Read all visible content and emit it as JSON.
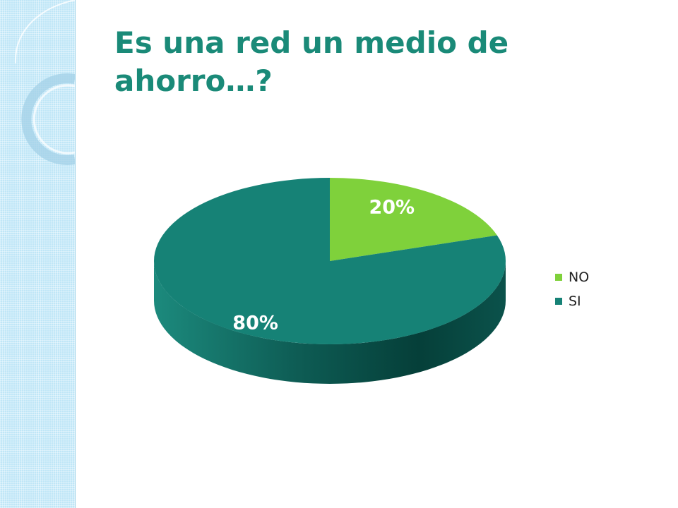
{
  "slide": {
    "title_lines": [
      "Es una red un medio de",
      "ahorro…?"
    ]
  },
  "colors": {
    "title": "#1a8a78",
    "no": "#7fd13b",
    "si": "#168276",
    "side_band": "#bfe6f7"
  },
  "chart_data": {
    "type": "pie",
    "style": "3d",
    "title": "",
    "slices": [
      {
        "label": "NO",
        "value": 20,
        "value_label": "20%",
        "color": "#7fd13b"
      },
      {
        "label": "SI",
        "value": 80,
        "value_label": "80%",
        "color": "#168276"
      }
    ],
    "legend": {
      "placement": "right",
      "entries": [
        "NO",
        "SI"
      ]
    }
  }
}
